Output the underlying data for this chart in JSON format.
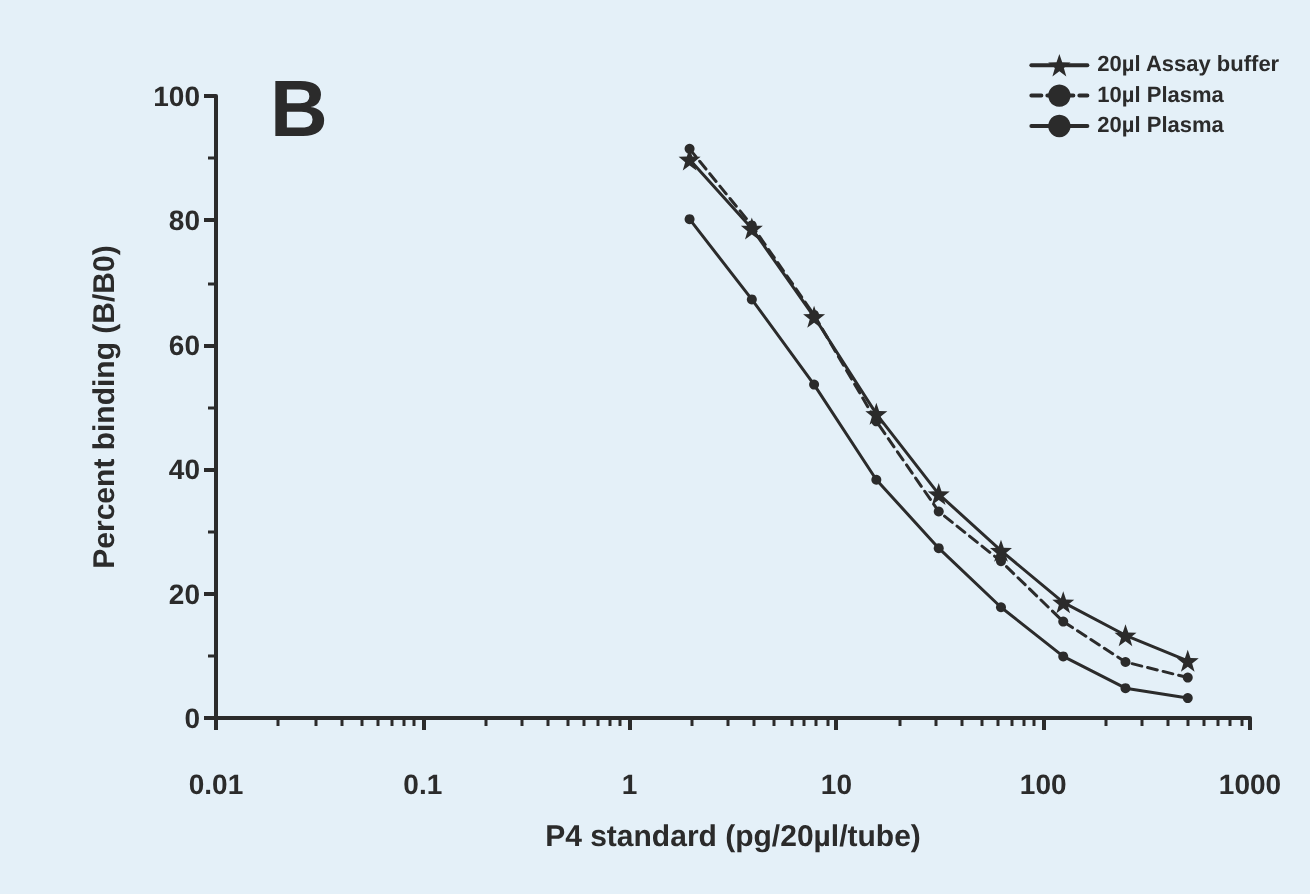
{
  "chart_data": {
    "type": "line",
    "title": "B",
    "xlabel": "P4 standard (pg/20µl/tube)",
    "ylabel": "Percent binding (B/B0)",
    "x": [
      1.95,
      3.9,
      7.8,
      15.6,
      31.25,
      62.5,
      125,
      250,
      500
    ],
    "series": [
      {
        "name": "20µl Assay buffer",
        "color": "#2b2b2b",
        "marker": "star",
        "line_style": "solid",
        "values": [
          89.8,
          78.7,
          64.5,
          48.9,
          36.0,
          26.9,
          18.6,
          13.3,
          9.2
        ]
      },
      {
        "name": "10µl Plasma",
        "color": "#2b2b2b",
        "marker": "circle",
        "line_style": "dashed",
        "values": [
          91.5,
          79.2,
          64.8,
          47.7,
          33.2,
          25.2,
          15.5,
          9.0,
          6.5
        ]
      },
      {
        "name": "20µl Plasma",
        "color": "#2b2b2b",
        "marker": "circle",
        "line_style": "solid",
        "values": [
          80.2,
          67.3,
          53.6,
          38.3,
          27.3,
          17.8,
          9.9,
          4.8,
          3.2
        ]
      }
    ],
    "log": "x",
    "xlim": [
      0.01,
      1000
    ],
    "xticks": [
      0.01,
      0.1,
      1,
      10,
      100,
      1000
    ],
    "ylim": [
      0,
      100
    ],
    "yticks": [
      0,
      20,
      40,
      60,
      80,
      100
    ],
    "grid": false,
    "legend": "top right"
  }
}
